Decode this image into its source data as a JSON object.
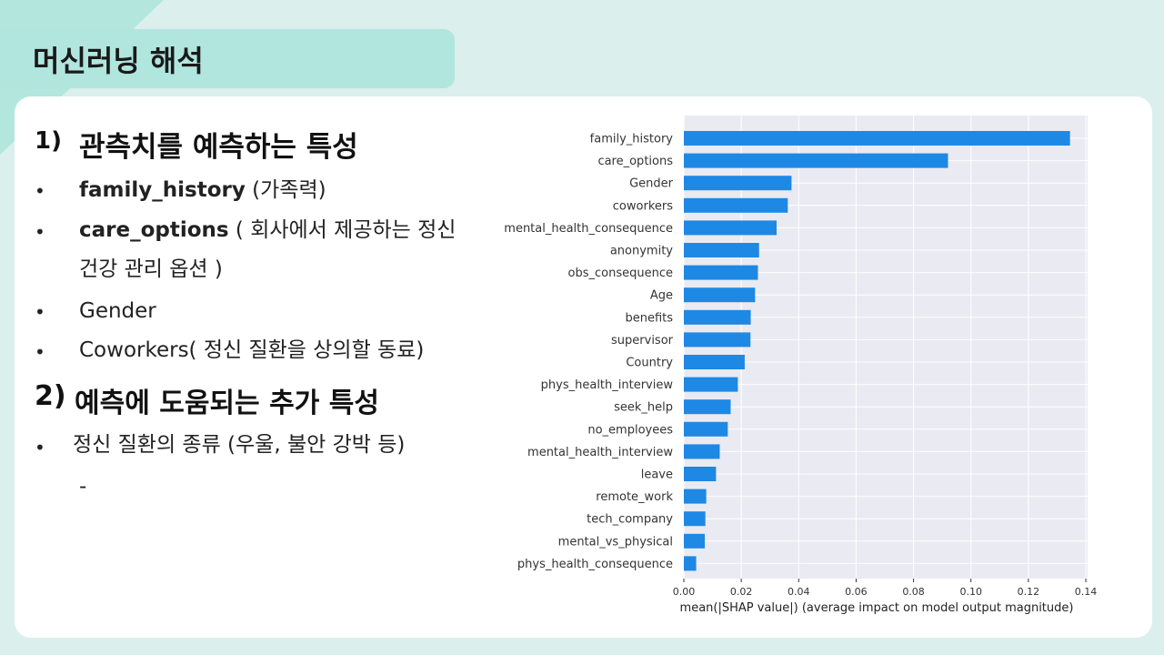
{
  "slide": {
    "title": "머신러닝 해석",
    "section1": {
      "number": "1)",
      "heading": "관측치를 예측하는 특성"
    },
    "bullets1": [
      {
        "bold": "family_history",
        "rest": " (가족력)"
      },
      {
        "bold": "care_options",
        "rest": " ( 회사에서 제공하는 정신"
      },
      {
        "bold": "",
        "rest": "건강 관리 옵션 )"
      },
      {
        "bold": "",
        "rest": "Gender"
      },
      {
        "bold": "",
        "rest": "Coworkers( 정신 질환을 상의할 동료)"
      }
    ],
    "section2": {
      "number": "2)",
      "heading": "예측에 도움되는 추가 특성"
    },
    "bullets2": [
      {
        "text": "정신 질환의 종류 (우울, 불안 강박 등)"
      }
    ],
    "dash": "-",
    "bullet_symbol": "•"
  },
  "chart_data": {
    "type": "bar",
    "orientation": "horizontal",
    "categories": [
      "family_history",
      "care_options",
      "Gender",
      "coworkers",
      "mental_health_consequence",
      "anonymity",
      "obs_consequence",
      "Age",
      "benefits",
      "supervisor",
      "Country",
      "phys_health_interview",
      "seek_help",
      "no_employees",
      "mental_health_interview",
      "leave",
      "remote_work",
      "tech_company",
      "mental_vs_physical",
      "phys_health_consequence"
    ],
    "values": [
      0.1345,
      0.092,
      0.0375,
      0.0362,
      0.0323,
      0.0262,
      0.0258,
      0.0248,
      0.0233,
      0.0232,
      0.0212,
      0.0188,
      0.0163,
      0.0153,
      0.0125,
      0.0112,
      0.0078,
      0.0075,
      0.0073,
      0.0043
    ],
    "xlabel": "mean(|SHAP value|) (average impact on model output magnitude)",
    "xlim": [
      0,
      0.14
    ],
    "xticks": [
      "0.00",
      "0.02",
      "0.04",
      "0.06",
      "0.08",
      "0.10",
      "0.12",
      "0.14"
    ],
    "bar_color": "#1e88e5",
    "background_color": "#eaeaf2",
    "grid": true
  }
}
